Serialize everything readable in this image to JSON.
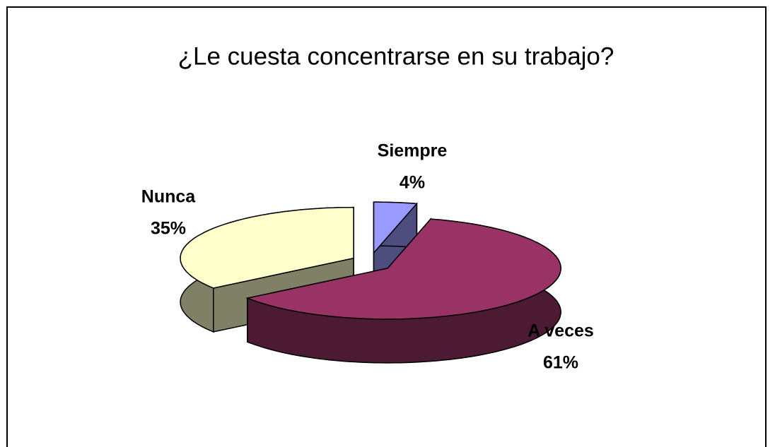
{
  "chart_data": {
    "type": "pie",
    "title": "¿Le cuesta concentrarse en su trabajo?",
    "categories": [
      "Siempre",
      "A veces",
      "Nunca"
    ],
    "values": [
      4,
      61,
      35
    ],
    "value_labels": [
      "4%",
      "61%",
      "35%"
    ],
    "colors": [
      "#9999ff",
      "#993366",
      "#ffffcc"
    ]
  }
}
